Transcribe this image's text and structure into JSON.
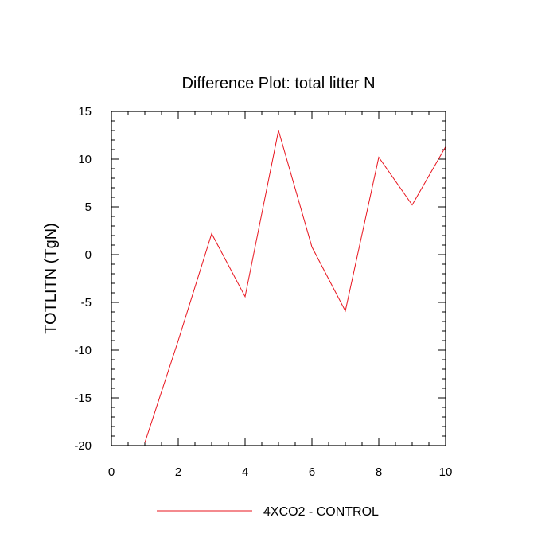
{
  "chart_data": {
    "type": "line",
    "title": "Difference Plot: total litter N",
    "xlabel": "",
    "ylabel": "TOTLITN  (TgN)",
    "xlim": [
      0,
      10
    ],
    "ylim": [
      -20,
      15
    ],
    "x_ticks": [
      0,
      2,
      4,
      6,
      8,
      10
    ],
    "y_ticks": [
      -20,
      -15,
      -10,
      -5,
      0,
      5,
      10,
      15
    ],
    "x_tick_labels": [
      "0",
      "2",
      "4",
      "6",
      "8",
      "10"
    ],
    "y_tick_labels": [
      "-20",
      "-15",
      "-10",
      "-5",
      "0",
      "5",
      "10",
      "15"
    ],
    "grid": false,
    "legend_position": "bottom",
    "series": [
      {
        "name": "4XCO2 - CONTROL",
        "color": "#e8141e",
        "x": [
          1,
          2,
          3,
          4,
          5,
          6,
          7,
          8,
          9,
          10
        ],
        "y": [
          -19.7,
          -9.0,
          2.2,
          -4.4,
          13.0,
          0.8,
          -5.9,
          10.2,
          5.2,
          11.3
        ]
      }
    ]
  }
}
